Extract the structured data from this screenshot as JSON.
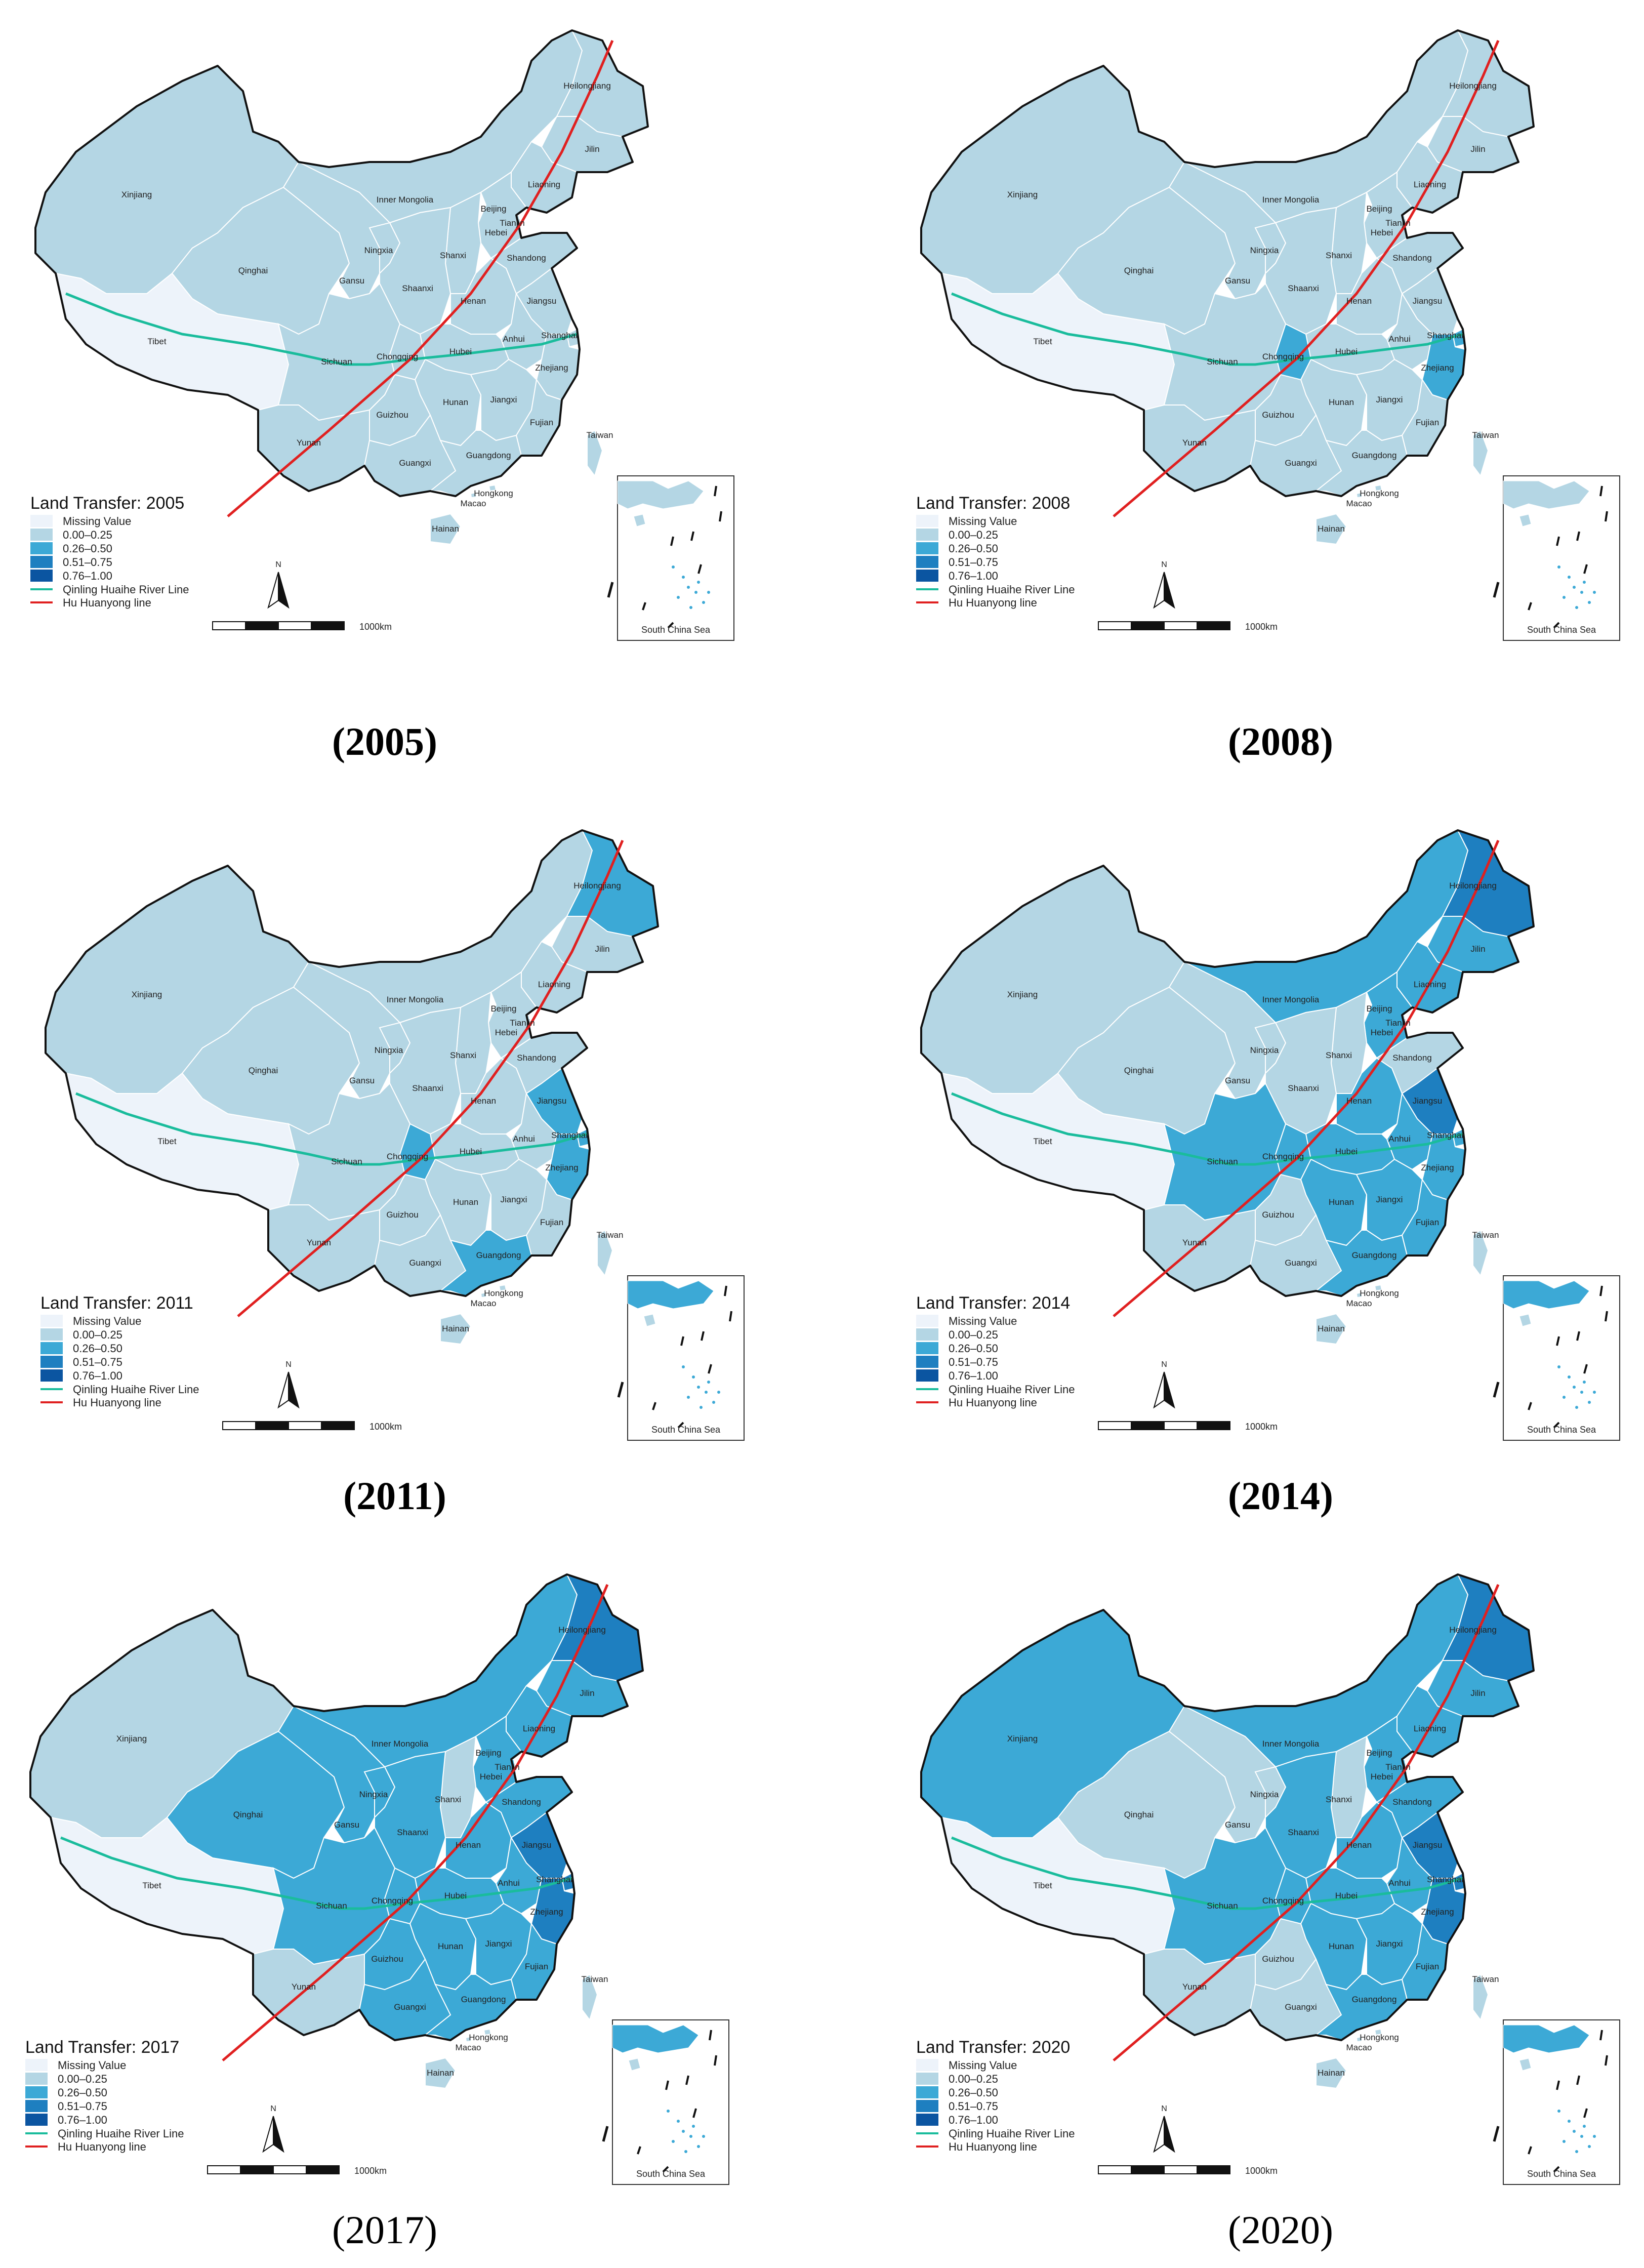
{
  "colors": {
    "missing": "#edf3fa",
    "c1": "#b4d6e4",
    "c2": "#3ca9d6",
    "c3": "#1e7fc0",
    "c4": "#0b55a1",
    "qinling": "#1abc9c",
    "hu": "#e02020",
    "border": "#111111",
    "internal": "#ffffff"
  },
  "legend_common": {
    "missing_label": "Missing Value",
    "classes": [
      "0.00–0.25",
      "0.26–0.50",
      "0.51–0.75",
      "0.76–1.00"
    ],
    "qinling_label": "Qinling Huaihe River Line",
    "hu_label": "Hu Huanyong line",
    "scale_label": "1000km",
    "north_label": "N",
    "inset_label": "South China Sea"
  },
  "panels": [
    {
      "title": "Land Transfer: 2005",
      "caption": "(2005)",
      "caption_bold": true,
      "classes": {
        "Xinjiang": 1,
        "Tibet": 0,
        "Qinghai": 1,
        "Gansu": 1,
        "Inner Mongolia": 1,
        "Heilongjiang": 1,
        "Jilin": 1,
        "Liaoning": 1,
        "Beijing": 1,
        "Tianjin": 1,
        "Hebei": 1,
        "Shanxi": 1,
        "Ningxia": 1,
        "Shaanxi": 1,
        "Henan": 1,
        "Shandong": 1,
        "Jiangsu": 1,
        "Anhui": 1,
        "Shanghai": 1,
        "Zhejiang": 1,
        "Hubei": 1,
        "Sichuan": 1,
        "Chongqing": 1,
        "Hunan": 1,
        "Jiangxi": 1,
        "Fujian": 1,
        "Guizhou": 1,
        "Yunan": 1,
        "Guangxi": 1,
        "Guangdong": 1,
        "Hainan": 1,
        "Taiwan": 1,
        "Hongkong": 1,
        "Macao": 1
      }
    },
    {
      "title": "Land Transfer: 2008",
      "caption": "(2008)",
      "caption_bold": true,
      "classes": {
        "Xinjiang": 1,
        "Tibet": 0,
        "Qinghai": 1,
        "Gansu": 1,
        "Inner Mongolia": 1,
        "Heilongjiang": 1,
        "Jilin": 1,
        "Liaoning": 1,
        "Beijing": 1,
        "Tianjin": 1,
        "Hebei": 1,
        "Shanxi": 1,
        "Ningxia": 1,
        "Shaanxi": 1,
        "Henan": 1,
        "Shandong": 1,
        "Jiangsu": 1,
        "Anhui": 1,
        "Shanghai": 2,
        "Zhejiang": 2,
        "Hubei": 1,
        "Sichuan": 1,
        "Chongqing": 2,
        "Hunan": 1,
        "Jiangxi": 1,
        "Fujian": 1,
        "Guizhou": 1,
        "Yunan": 1,
        "Guangxi": 1,
        "Guangdong": 1,
        "Hainan": 1,
        "Taiwan": 1,
        "Hongkong": 1,
        "Macao": 1
      }
    },
    {
      "title": "Land Transfer: 2011",
      "caption": "(2011)",
      "caption_bold": true,
      "classes": {
        "Xinjiang": 1,
        "Tibet": 0,
        "Qinghai": 1,
        "Gansu": 1,
        "Inner Mongolia": 1,
        "Heilongjiang": 2,
        "Jilin": 1,
        "Liaoning": 1,
        "Beijing": 2,
        "Tianjin": 1,
        "Hebei": 1,
        "Shanxi": 1,
        "Ningxia": 1,
        "Shaanxi": 1,
        "Henan": 1,
        "Shandong": 1,
        "Jiangsu": 2,
        "Anhui": 1,
        "Shanghai": 2,
        "Zhejiang": 2,
        "Hubei": 1,
        "Sichuan": 1,
        "Chongqing": 2,
        "Hunan": 1,
        "Jiangxi": 1,
        "Fujian": 1,
        "Guizhou": 1,
        "Yunan": 1,
        "Guangxi": 1,
        "Guangdong": 2,
        "Hainan": 1,
        "Taiwan": 1,
        "Hongkong": 1,
        "Macao": 1
      }
    },
    {
      "title": "Land Transfer: 2014",
      "caption": "(2014)",
      "caption_bold": true,
      "classes": {
        "Xinjiang": 1,
        "Tibet": 0,
        "Qinghai": 1,
        "Gansu": 1,
        "Inner Mongolia": 2,
        "Heilongjiang": 3,
        "Jilin": 2,
        "Liaoning": 2,
        "Beijing": 3,
        "Tianjin": 1,
        "Hebei": 2,
        "Shanxi": 1,
        "Ningxia": 1,
        "Shaanxi": 1,
        "Henan": 2,
        "Shandong": 1,
        "Jiangsu": 3,
        "Anhui": 2,
        "Shanghai": 2,
        "Zhejiang": 2,
        "Hubei": 2,
        "Sichuan": 2,
        "Chongqing": 2,
        "Hunan": 2,
        "Jiangxi": 2,
        "Fujian": 2,
        "Guizhou": 1,
        "Yunan": 1,
        "Guangxi": 1,
        "Guangdong": 2,
        "Hainan": 1,
        "Taiwan": 1,
        "Hongkong": 1,
        "Macao": 1
      }
    },
    {
      "title": "Land Transfer: 2017",
      "caption": "(2017)",
      "caption_bold": false,
      "classes": {
        "Xinjiang": 1,
        "Tibet": 0,
        "Qinghai": 2,
        "Gansu": 2,
        "Inner Mongolia": 2,
        "Heilongjiang": 3,
        "Jilin": 2,
        "Liaoning": 2,
        "Beijing": 3,
        "Tianjin": 2,
        "Hebei": 2,
        "Shanxi": 1,
        "Ningxia": 2,
        "Shaanxi": 2,
        "Henan": 2,
        "Shandong": 2,
        "Jiangsu": 3,
        "Anhui": 2,
        "Shanghai": 3,
        "Zhejiang": 3,
        "Hubei": 2,
        "Sichuan": 2,
        "Chongqing": 2,
        "Hunan": 2,
        "Jiangxi": 2,
        "Fujian": 2,
        "Guizhou": 2,
        "Yunan": 1,
        "Guangxi": 2,
        "Guangdong": 2,
        "Hainan": 1,
        "Taiwan": 1,
        "Hongkong": 1,
        "Macao": 1
      }
    },
    {
      "title": "Land Transfer: 2020",
      "caption": "(2020)",
      "caption_bold": false,
      "classes": {
        "Xinjiang": 2,
        "Tibet": 0,
        "Qinghai": 1,
        "Gansu": 1,
        "Inner Mongolia": 2,
        "Heilongjiang": 3,
        "Jilin": 2,
        "Liaoning": 2,
        "Beijing": 3,
        "Tianjin": 2,
        "Hebei": 2,
        "Shanxi": 1,
        "Ningxia": 1,
        "Shaanxi": 2,
        "Henan": 2,
        "Shandong": 2,
        "Jiangsu": 3,
        "Anhui": 2,
        "Shanghai": 3,
        "Zhejiang": 3,
        "Hubei": 2,
        "Sichuan": 2,
        "Chongqing": 2,
        "Hunan": 2,
        "Jiangxi": 2,
        "Fujian": 2,
        "Guizhou": 1,
        "Yunan": 1,
        "Guangxi": 1,
        "Guangdong": 2,
        "Hainan": 1,
        "Taiwan": 1,
        "Hongkong": 1,
        "Macao": 1
      }
    }
  ]
}
